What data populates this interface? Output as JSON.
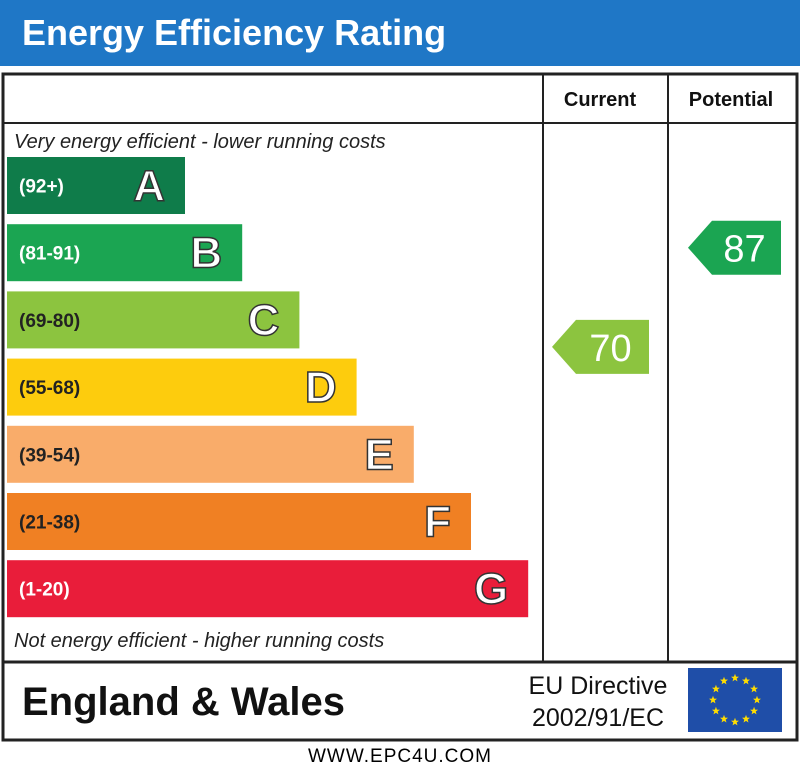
{
  "title": "Energy Efficiency Rating",
  "chart_data": {
    "type": "bar",
    "columns": [
      "Current",
      "Potential"
    ],
    "top_caption": "Very energy efficient - lower running costs",
    "bottom_caption": "Not energy efficient - higher running costs",
    "bands": [
      {
        "range": "(92+)",
        "letter": "A",
        "color": "#0f7c4a"
      },
      {
        "range": "(81-91)",
        "letter": "B",
        "color": "#1ba552"
      },
      {
        "range": "(69-80)",
        "letter": "C",
        "color": "#8cc43f"
      },
      {
        "range": "(55-68)",
        "letter": "D",
        "color": "#fdcc0d"
      },
      {
        "range": "(39-54)",
        "letter": "E",
        "color": "#f9ac6a"
      },
      {
        "range": "(21-38)",
        "letter": "F",
        "color": "#f08023"
      },
      {
        "range": "(1-20)",
        "letter": "G",
        "color": "#e91d3a"
      }
    ],
    "current": {
      "value": 70,
      "band": "C",
      "color": "#8cc43f"
    },
    "potential": {
      "value": 87,
      "band": "B",
      "color": "#1ba552"
    }
  },
  "footer": {
    "region": "England & Wales",
    "directive_line1": "EU Directive",
    "directive_line2": "2002/91/EC",
    "flag": "eu-flag-icon",
    "url": "WWW.EPC4U.COM"
  }
}
